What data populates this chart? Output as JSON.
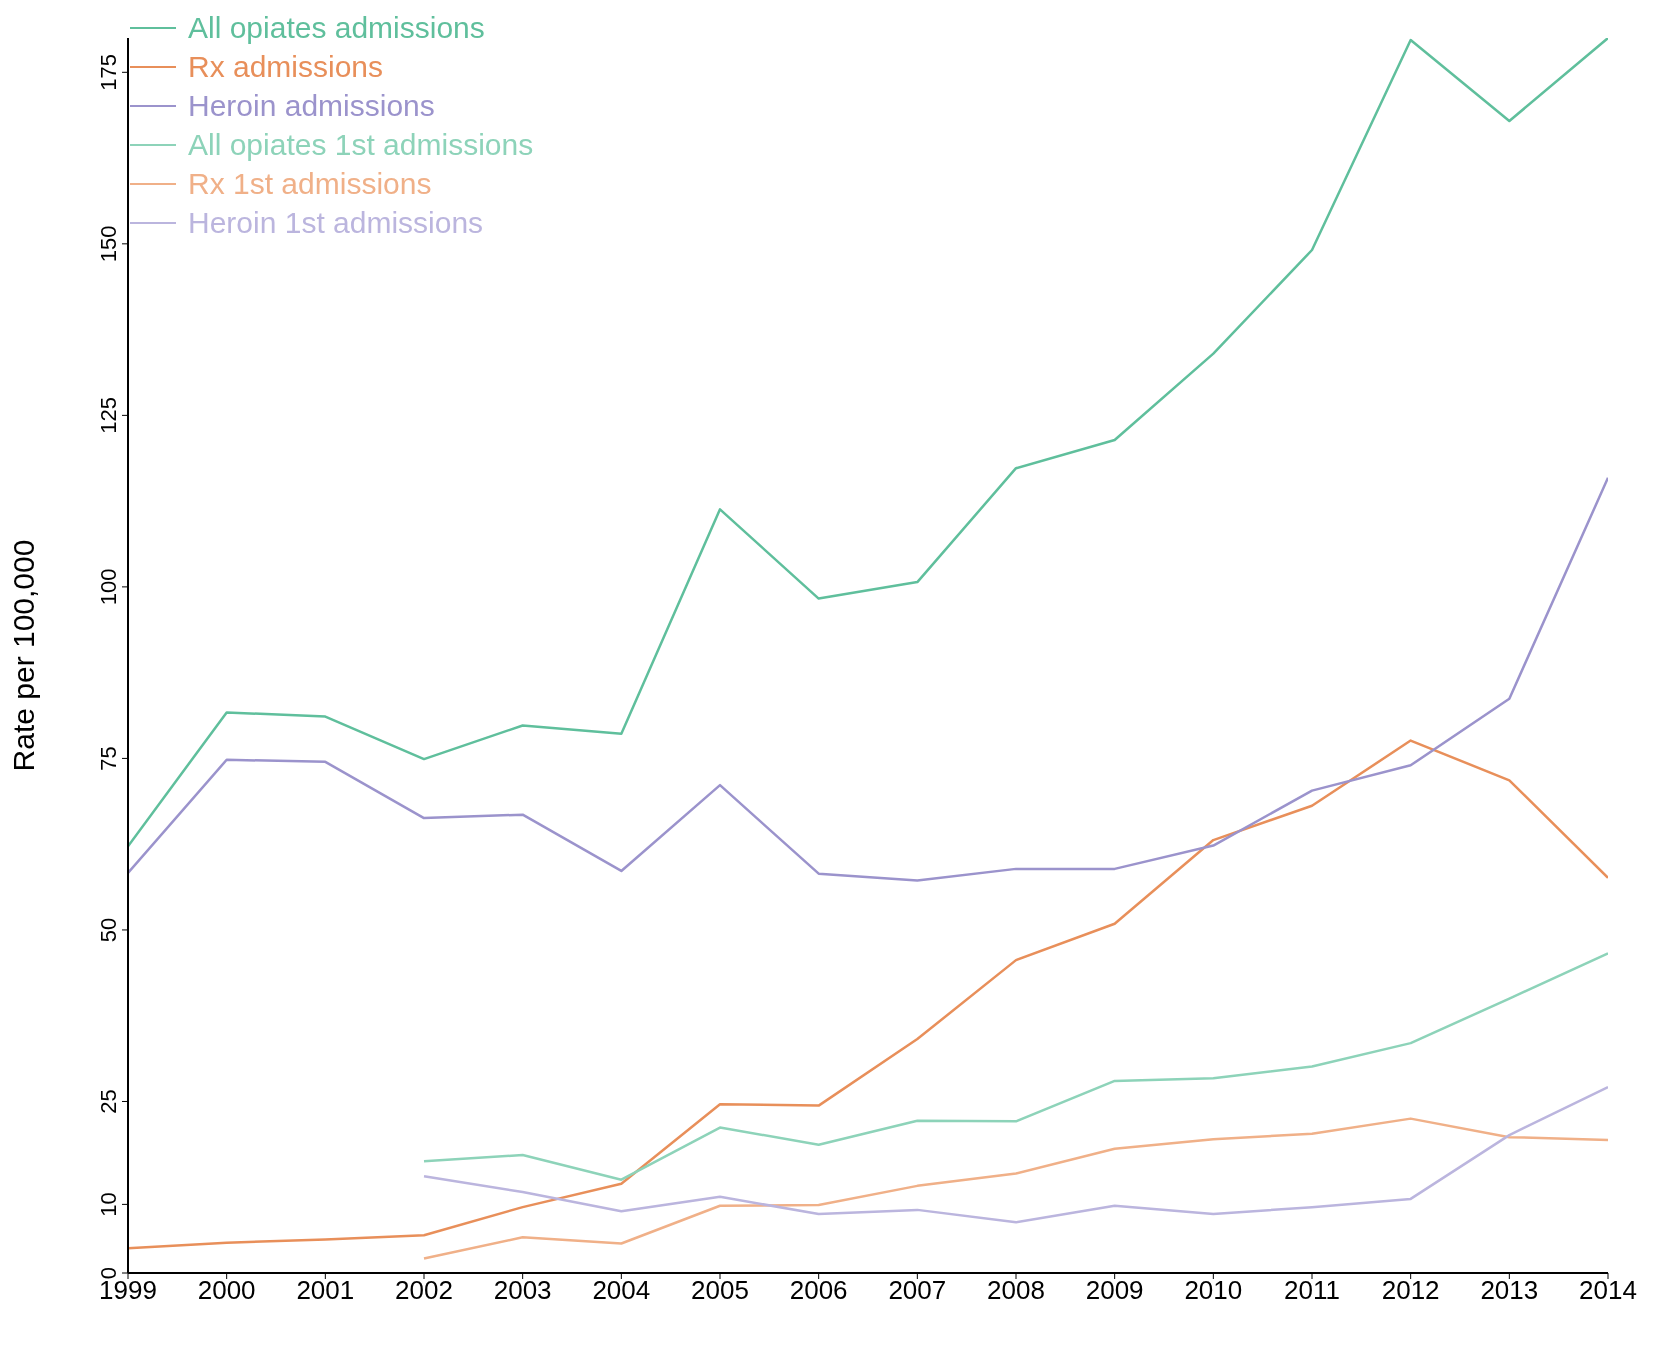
{
  "chart_data": {
    "type": "line",
    "ylabel": "Rate per 100,000",
    "x": [
      1999,
      2000,
      2001,
      2002,
      2003,
      2004,
      2005,
      2006,
      2007,
      2008,
      2009,
      2010,
      2011,
      2012,
      2013,
      2014
    ],
    "xlim": [
      1999,
      2014
    ],
    "xticks": [
      1999,
      2000,
      2001,
      2002,
      2003,
      2004,
      2005,
      2006,
      2007,
      2008,
      2009,
      2010,
      2011,
      2012,
      2013,
      2014
    ],
    "ylim": [
      0,
      180
    ],
    "yticks": [
      0,
      10,
      25,
      50,
      75,
      100,
      125,
      150,
      175
    ],
    "grid": false,
    "legend": "top left",
    "marker": "none",
    "line_style": "solid",
    "series": [
      {
        "name": "All opiates admissions",
        "color": "#5fbf9c",
        "values": [
          62.2,
          81.7,
          81.1,
          74.9,
          79.8,
          78.6,
          111.3,
          98.3,
          100.7,
          117.3,
          121.4,
          134.0,
          149.1,
          179.7,
          167.9,
          180.0
        ]
      },
      {
        "name": "Rx admissions",
        "color": "#e88f5a",
        "values": [
          3.6,
          4.4,
          4.9,
          5.5,
          9.6,
          13.0,
          24.6,
          24.4,
          34.1,
          45.6,
          50.9,
          63.1,
          68.1,
          77.6,
          71.8,
          57.6
        ]
      },
      {
        "name": "Heroin admissions",
        "color": "#9b93cc",
        "values": [
          58.3,
          74.8,
          74.5,
          66.3,
          66.8,
          58.6,
          71.1,
          58.2,
          57.2,
          58.9,
          58.9,
          62.3,
          70.3,
          74.0,
          83.7,
          115.9
        ]
      },
      {
        "name": "All opiates 1st admissions",
        "color": "#8dd3b9",
        "values": [
          null,
          null,
          null,
          16.3,
          17.2,
          13.6,
          21.2,
          18.7,
          22.2,
          22.1,
          28.0,
          28.4,
          30.1,
          33.5,
          40.0,
          46.6
        ]
      },
      {
        "name": "Rx 1st admissions",
        "color": "#f0b088",
        "values": [
          null,
          null,
          null,
          2.1,
          5.2,
          4.3,
          9.8,
          9.9,
          12.7,
          14.5,
          18.1,
          19.5,
          20.3,
          22.5,
          19.8,
          19.4
        ]
      },
      {
        "name": "Heroin 1st admissions",
        "color": "#bbb5de",
        "values": [
          null,
          null,
          null,
          14.1,
          11.8,
          9.0,
          11.1,
          8.6,
          9.2,
          7.4,
          9.8,
          8.6,
          9.6,
          10.8,
          20.1,
          27.1
        ]
      }
    ]
  }
}
